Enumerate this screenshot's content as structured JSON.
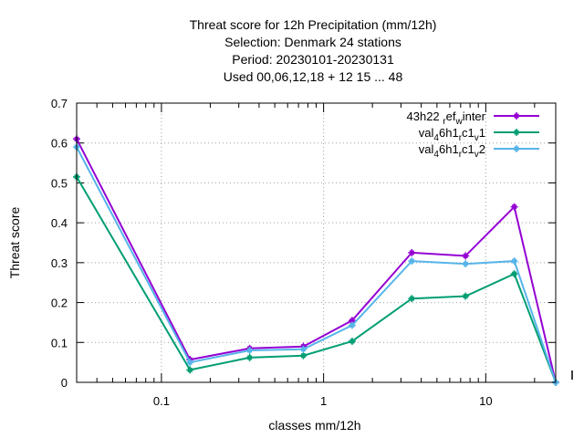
{
  "chart_data": {
    "type": "line",
    "title_lines": [
      "Threat score  for 12h Precipitation (mm/12h)",
      "Selection: Denmark      24 stations",
      "Period: 20230101-20230131",
      "Used  00,06,12,18  + 12 15 ... 48"
    ],
    "xlabel": "classes mm/12h",
    "ylabel": "Threat score",
    "x_scale": "log",
    "xlim": [
      0.03,
      27
    ],
    "ylim": [
      0,
      0.7
    ],
    "x_ticks": [
      {
        "value": 0.1,
        "label": "0.1"
      },
      {
        "value": 1,
        "label": "1"
      },
      {
        "value": 10,
        "label": "10"
      }
    ],
    "y_ticks": [
      {
        "value": 0,
        "label": "0"
      },
      {
        "value": 0.1,
        "label": "0.1"
      },
      {
        "value": 0.2,
        "label": "0.2"
      },
      {
        "value": 0.3,
        "label": "0.3"
      },
      {
        "value": 0.4,
        "label": "0.4"
      },
      {
        "value": 0.5,
        "label": "0.5"
      },
      {
        "value": 0.6,
        "label": "0.6"
      },
      {
        "value": 0.7,
        "label": "0.7"
      }
    ],
    "grid": true,
    "legend_position": "top-right",
    "x": [
      0.03,
      0.15,
      0.35,
      0.75,
      1.5,
      3.5,
      7.5,
      15,
      27
    ],
    "series": [
      {
        "name": "43h22_ref_winter",
        "legend_parts": [
          [
            "43h22 ",
            false
          ],
          [
            "r",
            true
          ],
          [
            "ef",
            false
          ],
          [
            "w",
            true
          ],
          [
            "inter",
            false
          ]
        ],
        "color": "#9400d3",
        "values": [
          0.61,
          0.057,
          0.085,
          0.09,
          0.155,
          0.325,
          0.317,
          0.44,
          0.0
        ]
      },
      {
        "name": "val_46h1_rc1_v1",
        "legend_parts": [
          [
            "val",
            false
          ],
          [
            "4",
            true
          ],
          [
            "6h1",
            false
          ],
          [
            "r",
            true
          ],
          [
            "c1",
            false
          ],
          [
            "v",
            true
          ],
          [
            "1",
            false
          ]
        ],
        "color": "#009e73",
        "values": [
          0.515,
          0.031,
          0.062,
          0.067,
          0.103,
          0.21,
          0.216,
          0.272,
          0.0
        ]
      },
      {
        "name": "val_46h1_rc1_v2",
        "legend_parts": [
          [
            "val",
            false
          ],
          [
            "4",
            true
          ],
          [
            "6h1",
            false
          ],
          [
            "r",
            true
          ],
          [
            "c1",
            false
          ],
          [
            "v",
            true
          ],
          [
            "2",
            false
          ]
        ],
        "color": "#56b4e9",
        "values": [
          0.59,
          0.05,
          0.08,
          0.083,
          0.143,
          0.304,
          0.297,
          0.304,
          0.0
        ]
      }
    ]
  }
}
